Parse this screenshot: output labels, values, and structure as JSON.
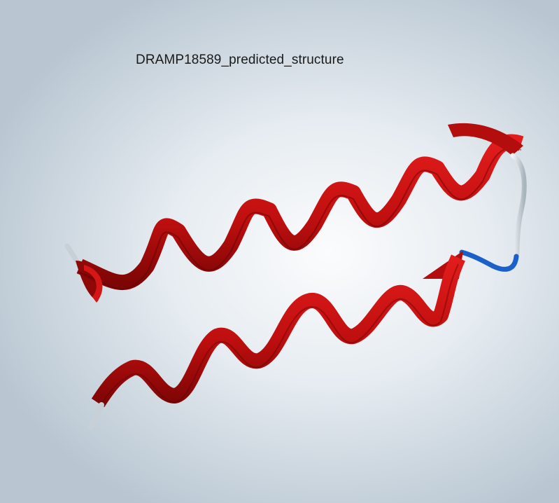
{
  "viewer": {
    "title": "DRAMP18589_predicted_structure"
  },
  "structure": {
    "representation": "cartoon",
    "segments": [
      {
        "type": "helix",
        "color": "#c00f0f"
      },
      {
        "type": "loop",
        "color": "#c6d0d6"
      },
      {
        "type": "loop",
        "color": "#1b5fc9"
      },
      {
        "type": "helix",
        "color": "#c00f0f"
      }
    ],
    "termini": {
      "color": "#c6d0d6"
    }
  },
  "background": {
    "center_color": "#fbfcfd",
    "edge_color": "#b9c6d1"
  }
}
